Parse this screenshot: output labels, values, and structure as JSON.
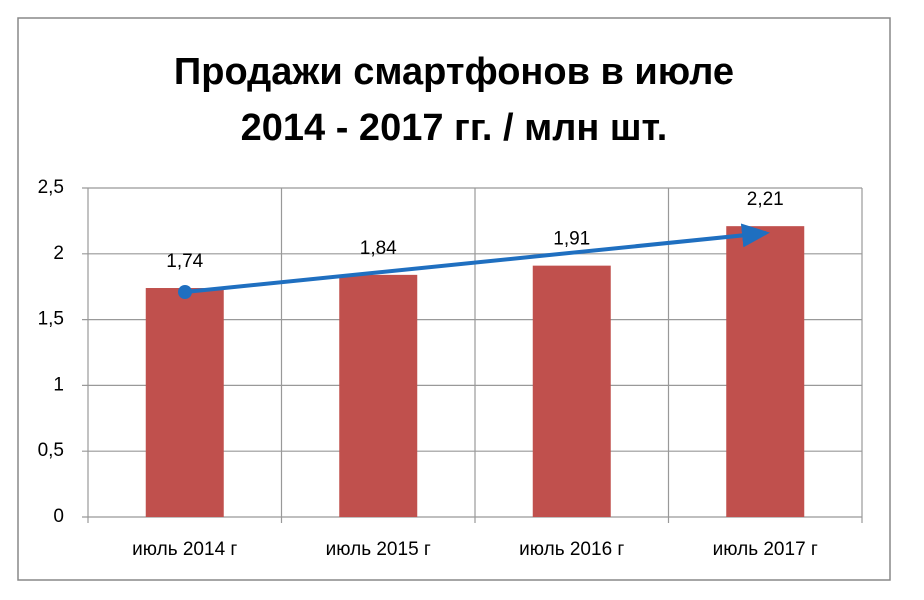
{
  "chart_data": {
    "type": "bar",
    "title": [
      "Продажи смартфонов в июле",
      "2014 - 2017 гг. / млн шт."
    ],
    "categories": [
      "июль 2014 г",
      "июль 2015 г",
      "июль 2016 г",
      "июль 2017 г"
    ],
    "values": [
      1.74,
      1.84,
      1.91,
      2.21
    ],
    "value_labels": [
      "1,74",
      "1,84",
      "1,91",
      "2,21"
    ],
    "color": "#c0504d",
    "ylim": [
      0,
      2.5
    ],
    "yticks": [
      0,
      {
        "value": 0.5,
        "label": "0,5"
      },
      1,
      {
        "value": 1.5,
        "label": "1,5"
      },
      2,
      {
        "value": 2.5,
        "label": "2,5"
      }
    ],
    "grid": true
  }
}
